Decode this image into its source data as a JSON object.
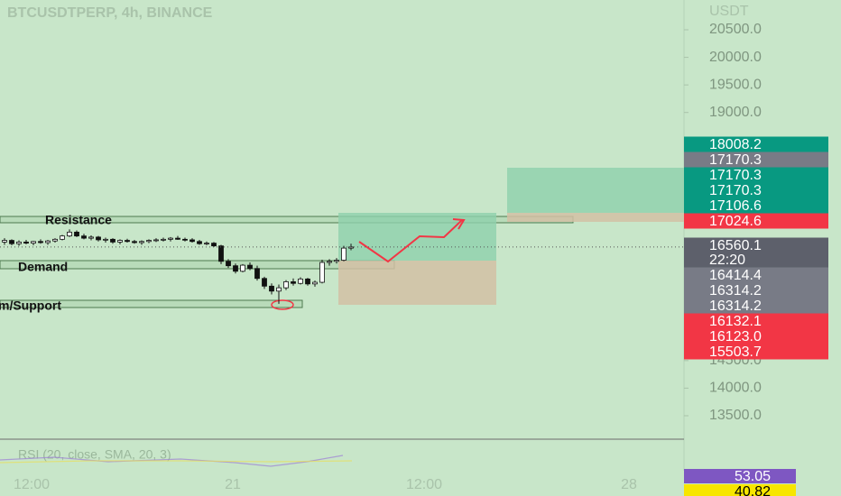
{
  "header": {
    "symbol": "BTCUSDTPERP, 4h, BINANCE",
    "currency": "USDT"
  },
  "chart_data": {
    "type": "candlestick",
    "ylim": [
      13107,
      21040
    ],
    "yticks": [
      {
        "value": 20500,
        "label": "20500.0"
      },
      {
        "value": 20000,
        "label": "20000.0"
      },
      {
        "value": 19500,
        "label": "19500.0"
      },
      {
        "value": 19000,
        "label": "19000.0"
      },
      {
        "value": 14500,
        "label": "14500.0"
      },
      {
        "value": 14000,
        "label": "14000.0"
      },
      {
        "value": 13500,
        "label": "13500.0"
      }
    ],
    "up_color": "#ffffff",
    "down_color": "#111111",
    "open": [
      16650,
      16680,
      16620,
      16650,
      16630,
      16660,
      16640,
      16670,
      16700,
      16760,
      16830,
      16760,
      16720,
      16740,
      16690,
      16700,
      16650,
      16680,
      16660,
      16640,
      16660,
      16680,
      16690,
      16700,
      16720,
      16700,
      16690,
      16660,
      16620,
      16630,
      16580,
      16300,
      16220,
      16120,
      16230,
      16170,
      15990,
      15850,
      15760,
      15820,
      15930,
      15900,
      15980,
      15890,
      15920,
      16280,
      16300,
      16320,
      16540
    ],
    "high": [
      16720,
      16700,
      16680,
      16690,
      16670,
      16700,
      16690,
      16720,
      16780,
      16880,
      16860,
      16800,
      16770,
      16760,
      16730,
      16720,
      16700,
      16710,
      16690,
      16680,
      16700,
      16720,
      16730,
      16740,
      16760,
      16730,
      16720,
      16690,
      16660,
      16650,
      16600,
      16340,
      16260,
      16250,
      16280,
      16220,
      16020,
      15900,
      15880,
      15960,
      15990,
      16010,
      16000,
      15950,
      16330,
      16340,
      16360,
      16580,
      16620
    ],
    "low": [
      16600,
      16590,
      16580,
      16610,
      16590,
      16620,
      16600,
      16640,
      16680,
      16740,
      16740,
      16700,
      16680,
      16660,
      16640,
      16620,
      16610,
      16640,
      16620,
      16600,
      16630,
      16650,
      16660,
      16660,
      16690,
      16660,
      16640,
      16600,
      16590,
      16560,
      16250,
      16180,
      16080,
      16100,
      16140,
      15950,
      15800,
      15700,
      15530,
      15780,
      15860,
      15880,
      15860,
      15840,
      15900,
      16220,
      16260,
      16300,
      16500
    ],
    "close": [
      16680,
      16620,
      16650,
      16630,
      16660,
      16640,
      16670,
      16700,
      16760,
      16830,
      16760,
      16720,
      16740,
      16690,
      16700,
      16650,
      16680,
      16660,
      16640,
      16660,
      16680,
      16690,
      16700,
      16720,
      16700,
      16690,
      16660,
      16620,
      16630,
      16580,
      16300,
      16220,
      16120,
      16230,
      16170,
      15990,
      15850,
      15760,
      15820,
      15930,
      15900,
      15980,
      15890,
      15920,
      16280,
      16300,
      16320,
      16540,
      16560
    ]
  },
  "zones": [
    "Resistance",
    "Demand",
    "m/Support"
  ],
  "price_labels": [
    {
      "text": "18008.2",
      "color": "#089981"
    },
    {
      "text": "17170.3",
      "color": "#787b86"
    },
    {
      "text": "17170.3",
      "color": "#089981"
    },
    {
      "text": "17170.3",
      "color": "#089981"
    },
    {
      "text": "17106.6",
      "color": "#089981"
    },
    {
      "text": "17024.6",
      "color": "#f23645"
    },
    {
      "text": "16560.1",
      "color": "#5d606b"
    },
    {
      "text": "22:20",
      "color": "#5d606b"
    },
    {
      "text": "16414.4",
      "color": "#787b86"
    },
    {
      "text": "16314.2",
      "color": "#787b86"
    },
    {
      "text": "16314.2",
      "color": "#787b86"
    },
    {
      "text": "16132.1",
      "color": "#f23645"
    },
    {
      "text": "16123.0",
      "color": "#f23645"
    },
    {
      "text": "15503.7",
      "color": "#f23645"
    }
  ],
  "rsi": {
    "title": "RSI (20, close, SMA, 20, 3)",
    "values": [
      {
        "text": "53.05",
        "color": "#7e57c2",
        "text_color": "#ffffff"
      },
      {
        "text": "40.82",
        "color": "#f7e600",
        "text_color": "#000000"
      }
    ]
  },
  "time_labels": [
    "12:00",
    "21",
    "12:00",
    "28"
  ]
}
